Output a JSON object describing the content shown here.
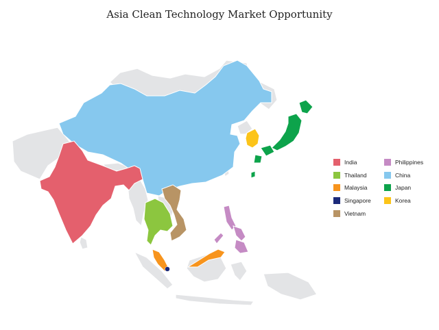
{
  "title": "Asia Clean Technology Market Opportunity",
  "colors": {
    "background_land": "#e3e4e6",
    "india": "#e4606d",
    "thailand": "#8cc63f",
    "malaysia": "#f7941d",
    "singapore": "#1b2a7a",
    "vietnam": "#b89465",
    "philippines": "#c58bc4",
    "china": "#86c8ee",
    "japan": "#0da34b",
    "korea": "#fcc419"
  },
  "legend": {
    "column1": [
      {
        "label": "India",
        "color": "#e4606d",
        "icon": "square-swatch"
      },
      {
        "label": "Thailand",
        "color": "#8cc63f",
        "icon": "square-swatch"
      },
      {
        "label": "Malaysia",
        "color": "#f7941d",
        "icon": "square-swatch"
      },
      {
        "label": "Singapore",
        "color": "#1b2a7a",
        "icon": "square-swatch"
      },
      {
        "label": "Vietnam",
        "color": "#b89465",
        "icon": "square-swatch"
      }
    ],
    "column2": [
      {
        "label": "Philippines",
        "color": "#c58bc4",
        "icon": "square-swatch"
      },
      {
        "label": "China",
        "color": "#86c8ee",
        "icon": "square-swatch"
      },
      {
        "label": "Japan",
        "color": "#0da34b",
        "icon": "square-swatch"
      },
      {
        "label": "Korea",
        "color": "#fcc419",
        "icon": "square-swatch"
      }
    ]
  }
}
